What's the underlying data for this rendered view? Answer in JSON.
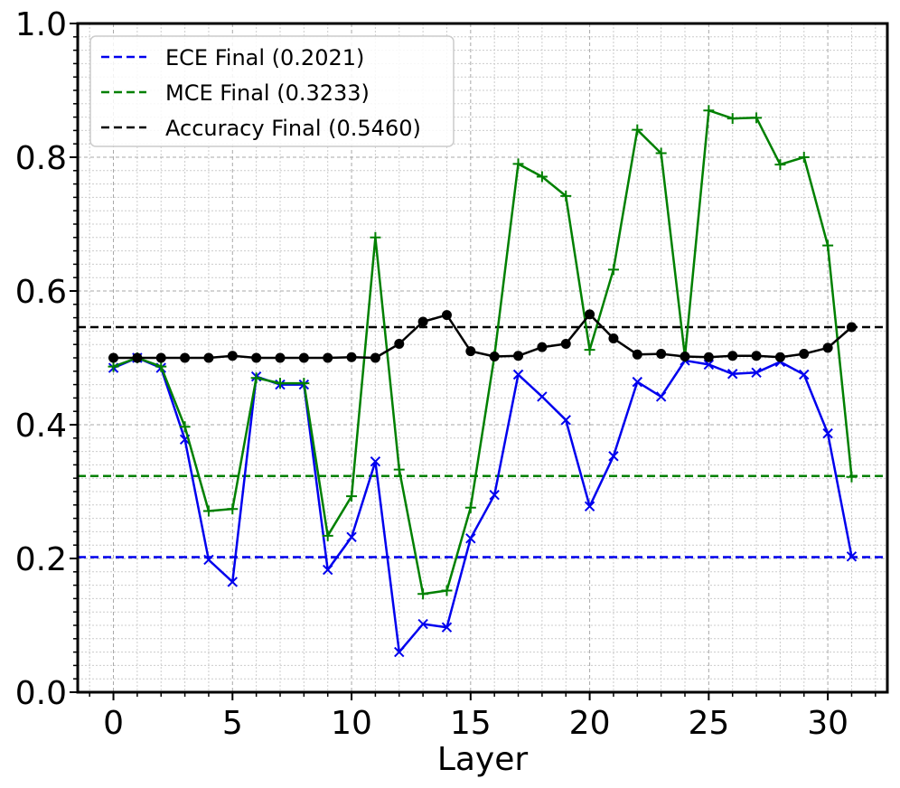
{
  "chart_data": {
    "type": "line",
    "title": "",
    "xlabel": "Layer",
    "ylabel": "",
    "xlim": [
      -1.5,
      32.5
    ],
    "ylim": [
      0,
      1.0
    ],
    "x_ticks": [
      0,
      5,
      10,
      15,
      20,
      25,
      30
    ],
    "x_tick_labels": [
      "0",
      "5",
      "10",
      "15",
      "20",
      "25",
      "30"
    ],
    "y_ticks": [
      0.0,
      0.2,
      0.4,
      0.6,
      0.8,
      1.0
    ],
    "y_tick_labels": [
      "0.0",
      "0.2",
      "0.4",
      "0.6",
      "0.8",
      "1.0"
    ],
    "grid": true,
    "legend_position": "top-left",
    "x": [
      0,
      1,
      2,
      3,
      4,
      5,
      6,
      7,
      8,
      9,
      10,
      11,
      12,
      13,
      14,
      15,
      16,
      17,
      18,
      19,
      20,
      21,
      22,
      23,
      24,
      25,
      26,
      27,
      28,
      29,
      30,
      31
    ],
    "series": [
      {
        "key": "ece",
        "color": "#0000ee",
        "marker": "x",
        "values": [
          0.485,
          0.5,
          0.485,
          0.378,
          0.198,
          0.165,
          0.472,
          0.46,
          0.46,
          0.183,
          0.232,
          0.345,
          0.06,
          0.102,
          0.097,
          0.23,
          0.295,
          0.475,
          0.442,
          0.407,
          0.278,
          0.353,
          0.464,
          0.442,
          0.496,
          0.49,
          0.476,
          0.478,
          0.494,
          0.475,
          0.387,
          0.203
        ]
      },
      {
        "key": "mce",
        "color": "#008000",
        "marker": "plus",
        "values": [
          0.487,
          0.5,
          0.487,
          0.397,
          0.271,
          0.274,
          0.47,
          0.462,
          0.462,
          0.234,
          0.293,
          0.68,
          0.333,
          0.147,
          0.152,
          0.276,
          0.503,
          0.79,
          0.771,
          0.742,
          0.512,
          0.632,
          0.841,
          0.806,
          0.502,
          0.87,
          0.858,
          0.859,
          0.789,
          0.8,
          0.668,
          0.322
        ]
      },
      {
        "key": "accuracy",
        "color": "#000000",
        "marker": "circle",
        "values": [
          0.5,
          0.5,
          0.5,
          0.5,
          0.5,
          0.503,
          0.5,
          0.5,
          0.5,
          0.5,
          0.501,
          0.5,
          0.521,
          0.554,
          0.564,
          0.51,
          0.502,
          0.503,
          0.516,
          0.521,
          0.565,
          0.529,
          0.505,
          0.506,
          0.502,
          0.501,
          0.503,
          0.503,
          0.501,
          0.506,
          0.515,
          0.546
        ]
      }
    ],
    "reference_lines": [
      {
        "label": "ECE Final (0.2021)",
        "value": 0.2021,
        "color": "#0000ee"
      },
      {
        "label": "MCE Final (0.3233)",
        "value": 0.3233,
        "color": "#008000"
      },
      {
        "label": "Accuracy Final (0.5460)",
        "value": 0.546,
        "color": "#000000"
      }
    ]
  }
}
